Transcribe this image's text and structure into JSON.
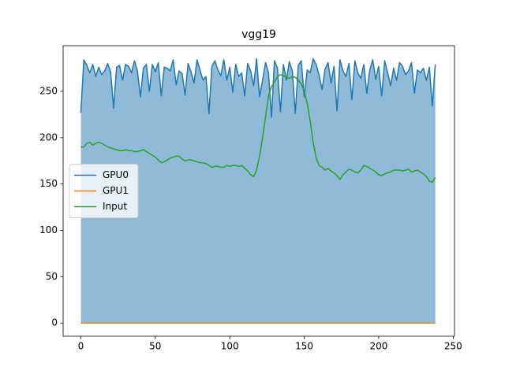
{
  "chart_data": {
    "type": "line",
    "title": "vgg19",
    "x": [
      0,
      2,
      4,
      6,
      8,
      10,
      12,
      14,
      16,
      18,
      20,
      22,
      24,
      26,
      28,
      30,
      32,
      34,
      36,
      38,
      40,
      42,
      44,
      46,
      48,
      50,
      52,
      54,
      56,
      58,
      60,
      62,
      64,
      66,
      68,
      70,
      72,
      74,
      76,
      78,
      80,
      82,
      84,
      86,
      88,
      90,
      92,
      94,
      96,
      98,
      100,
      102,
      104,
      106,
      108,
      110,
      112,
      114,
      116,
      118,
      120,
      122,
      124,
      126,
      128,
      130,
      132,
      134,
      136,
      138,
      140,
      142,
      144,
      146,
      148,
      150,
      152,
      154,
      156,
      158,
      160,
      162,
      164,
      166,
      168,
      170,
      172,
      174,
      176,
      178,
      180,
      182,
      184,
      186,
      188,
      190,
      192,
      194,
      196,
      198,
      200,
      202,
      204,
      206,
      208,
      210,
      212,
      214,
      216,
      218,
      220,
      222,
      224,
      226,
      228,
      230,
      232,
      234,
      236,
      238
    ],
    "series": [
      {
        "name": "GPU0",
        "color": "#1f77b4",
        "fill": true,
        "values": [
          227,
          284,
          278,
          270,
          279,
          266,
          276,
          268,
          272,
          280,
          271,
          232,
          276,
          278,
          262,
          279,
          277,
          270,
          283,
          272,
          244,
          275,
          279,
          250,
          279,
          271,
          281,
          245,
          276,
          275,
          272,
          284,
          257,
          272,
          269,
          246,
          280,
          271,
          259,
          284,
          273,
          262,
          266,
          226,
          277,
          283,
          273,
          267,
          284,
          262,
          276,
          249,
          279,
          266,
          270,
          245,
          280,
          272,
          256,
          285,
          244,
          262,
          281,
          270,
          222,
          283,
          275,
          228,
          279,
          262,
          282,
          272,
          226,
          278,
          283,
          244,
          273,
          270,
          285,
          279,
          267,
          252,
          274,
          281,
          259,
          277,
          229,
          284,
          272,
          266,
          280,
          241,
          283,
          270,
          264,
          279,
          248,
          273,
          284,
          263,
          277,
          245,
          283,
          270,
          256,
          275,
          262,
          281,
          277,
          268,
          272,
          281,
          248,
          273,
          270,
          275,
          262,
          276,
          234,
          279
        ]
      },
      {
        "name": "GPU1",
        "color": "#ff7f0e",
        "values": [
          0,
          0,
          0,
          0,
          0,
          0,
          0,
          0,
          0,
          0,
          0,
          0,
          0,
          0,
          0,
          0,
          0,
          0,
          0,
          0,
          0,
          0,
          0,
          0,
          0,
          0,
          0,
          0,
          0,
          0,
          0,
          0,
          0,
          0,
          0,
          0,
          0,
          0,
          0,
          0,
          0,
          0,
          0,
          0,
          0,
          0,
          0,
          0,
          0,
          0,
          0,
          0,
          0,
          0,
          0,
          0,
          0,
          0,
          0,
          0,
          0,
          0,
          0,
          0,
          0,
          0,
          0,
          0,
          0,
          0,
          0,
          0,
          0,
          0,
          0,
          0,
          0,
          0,
          0,
          0,
          0,
          0,
          0,
          0,
          0,
          0,
          0,
          0,
          0,
          0,
          0,
          0,
          0,
          0,
          0,
          0,
          0,
          0,
          0,
          0,
          0,
          0,
          0,
          0,
          0,
          0,
          0,
          0,
          0,
          0,
          0,
          0,
          0,
          0,
          0,
          0,
          0,
          0,
          0,
          0
        ]
      },
      {
        "name": "Input",
        "color": "#2ca02c",
        "values": [
          190,
          190,
          194,
          195,
          192,
          194,
          195,
          194,
          192,
          190,
          189,
          188,
          187,
          186,
          186,
          187,
          186,
          186,
          185,
          185,
          186,
          187,
          185,
          183,
          181,
          179,
          176,
          173,
          174,
          176,
          178,
          179,
          180,
          180,
          177,
          175,
          176,
          176,
          175,
          174,
          173,
          173,
          172,
          170,
          168,
          169,
          169,
          168,
          168,
          170,
          169,
          170,
          170,
          169,
          170,
          167,
          164,
          160,
          158,
          165,
          180,
          200,
          222,
          245,
          255,
          260,
          266,
          268,
          267,
          265,
          264,
          266,
          265,
          262,
          258,
          250,
          237,
          218,
          195,
          178,
          170,
          168,
          165,
          167,
          164,
          162,
          159,
          155,
          160,
          163,
          166,
          165,
          163,
          162,
          165,
          170,
          169,
          167,
          165,
          163,
          160,
          159,
          161,
          162,
          163,
          165,
          165,
          165,
          164,
          165,
          166,
          163,
          164,
          165,
          163,
          161,
          158,
          153,
          152,
          157
        ]
      }
    ],
    "xlim": [
      -11.9,
      250.9
    ],
    "xticks": [
      0,
      50,
      100,
      150,
      200,
      250
    ],
    "ylim": [
      -14.25,
      299.25
    ],
    "yticks": [
      0,
      50,
      100,
      150,
      200,
      250
    ],
    "legend_loc": "center left"
  }
}
